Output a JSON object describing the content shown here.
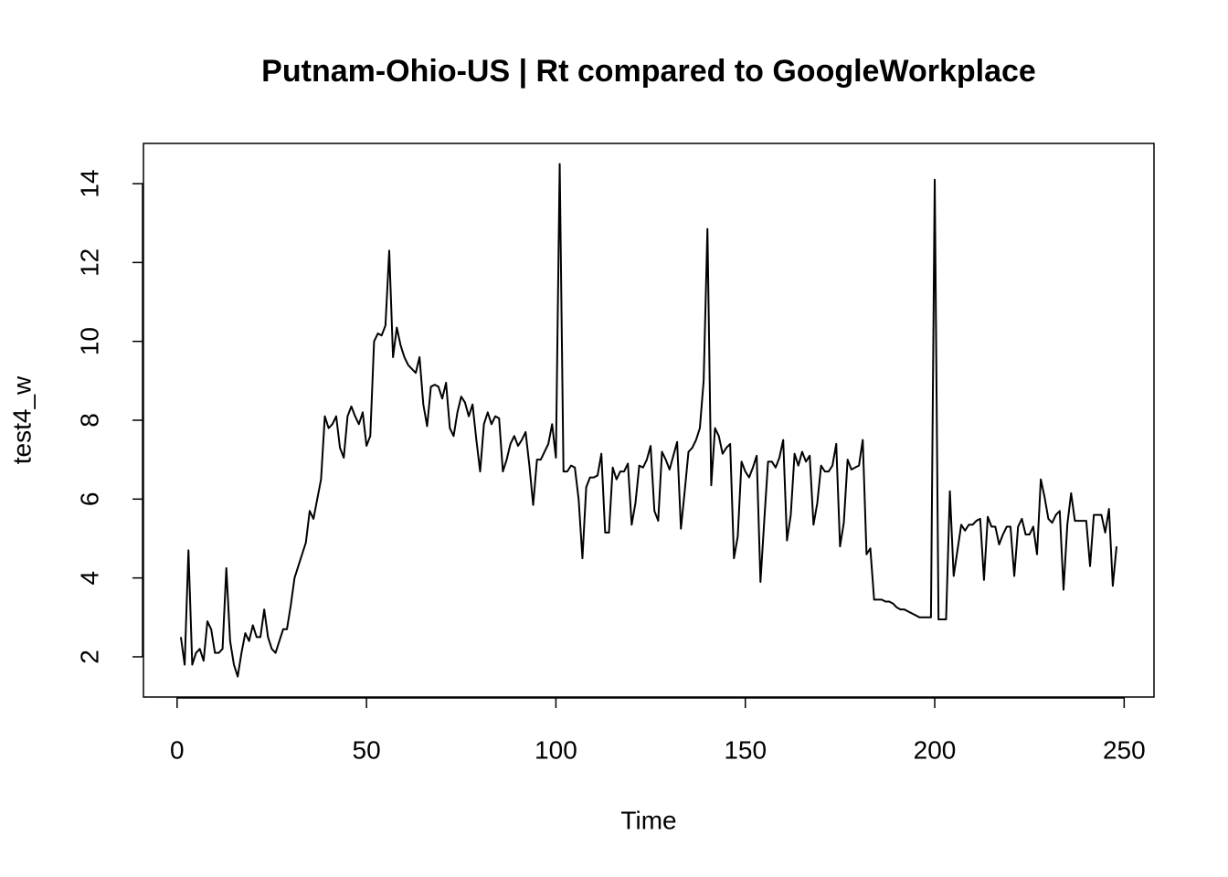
{
  "chart_data": {
    "type": "line",
    "title": "Putnam-Ohio-US | Rt compared to GoogleWorkplace",
    "x_label": "Time",
    "y_label": "test4_w",
    "x": [
      1,
      2,
      3,
      4,
      5,
      6,
      7,
      8,
      9,
      10,
      11,
      12,
      13,
      14,
      15,
      16,
      17,
      18,
      19,
      20,
      21,
      22,
      23,
      24,
      25,
      26,
      27,
      28,
      29,
      30,
      31,
      32,
      33,
      34,
      35,
      36,
      37,
      38,
      39,
      40,
      41,
      42,
      43,
      44,
      45,
      46,
      47,
      48,
      49,
      50,
      51,
      52,
      53,
      54,
      55,
      56,
      57,
      58,
      59,
      60,
      61,
      62,
      63,
      64,
      65,
      66,
      67,
      68,
      69,
      70,
      71,
      72,
      73,
      74,
      75,
      76,
      77,
      78,
      79,
      80,
      81,
      82,
      83,
      84,
      85,
      86,
      87,
      88,
      89,
      90,
      91,
      92,
      93,
      94,
      95,
      96,
      97,
      98,
      99,
      100,
      101,
      102,
      103,
      104,
      105,
      106,
      107,
      108,
      109,
      110,
      111,
      112,
      113,
      114,
      115,
      116,
      117,
      118,
      119,
      120,
      121,
      122,
      123,
      124,
      125,
      126,
      127,
      128,
      129,
      130,
      131,
      132,
      133,
      134,
      135,
      136,
      137,
      138,
      139,
      140,
      141,
      142,
      143,
      144,
      145,
      146,
      147,
      148,
      149,
      150,
      151,
      152,
      153,
      154,
      155,
      156,
      157,
      158,
      159,
      160,
      161,
      162,
      163,
      164,
      165,
      166,
      167,
      168,
      169,
      170,
      171,
      172,
      173,
      174,
      175,
      176,
      177,
      178,
      179,
      180,
      181,
      182,
      183,
      184,
      185,
      186,
      187,
      188,
      189,
      190,
      191,
      192,
      193,
      194,
      195,
      196,
      197,
      198,
      199,
      200,
      201,
      202,
      203,
      204,
      205,
      206,
      207,
      208,
      209,
      210,
      211,
      212,
      213,
      214,
      215,
      216,
      217,
      218,
      219,
      220,
      221,
      222,
      223,
      224,
      225,
      226,
      227,
      228,
      229,
      230,
      231,
      232,
      233,
      234,
      235,
      236,
      237,
      238,
      239,
      240,
      241,
      242,
      243,
      244,
      245,
      246,
      247,
      248
    ],
    "series": [
      {
        "color": "#000000",
        "values": [
          2.5,
          1.8,
          4.7,
          1.8,
          2.1,
          2.2,
          1.9,
          2.9,
          2.7,
          2.1,
          2.1,
          2.2,
          4.25,
          2.4,
          1.8,
          1.5,
          2.1,
          2.6,
          2.4,
          2.8,
          2.5,
          2.5,
          3.2,
          2.5,
          2.2,
          2.1,
          2.4,
          2.7,
          2.7,
          3.3,
          4.0,
          4.3,
          4.6,
          4.9,
          5.7,
          5.5,
          6.0,
          6.5,
          8.1,
          7.8,
          7.9,
          8.1,
          7.3,
          7.05,
          8.1,
          8.35,
          8.1,
          7.9,
          8.2,
          7.35,
          7.6,
          10.0,
          10.2,
          10.15,
          10.4,
          12.3,
          9.6,
          10.35,
          9.9,
          9.6,
          9.4,
          9.3,
          9.2,
          9.6,
          8.4,
          7.85,
          8.85,
          8.9,
          8.85,
          8.55,
          8.95,
          7.8,
          7.6,
          8.2,
          8.6,
          8.45,
          8.1,
          8.4,
          7.5,
          6.7,
          7.9,
          8.2,
          7.9,
          8.1,
          8.05,
          6.7,
          7.0,
          7.4,
          7.6,
          7.35,
          7.5,
          7.7,
          6.85,
          5.85,
          7.0,
          7.0,
          7.2,
          7.4,
          7.9,
          7.05,
          14.5,
          6.7,
          6.7,
          6.85,
          6.8,
          6.0,
          4.5,
          6.3,
          6.55,
          6.55,
          6.6,
          7.15,
          5.15,
          5.15,
          6.8,
          6.5,
          6.7,
          6.7,
          6.9,
          5.35,
          5.9,
          6.85,
          6.8,
          7.0,
          7.35,
          5.7,
          5.45,
          7.2,
          7.0,
          6.75,
          7.1,
          7.45,
          5.25,
          6.2,
          7.2,
          7.3,
          7.5,
          7.8,
          9.0,
          12.85,
          6.35,
          7.8,
          7.6,
          7.15,
          7.3,
          7.4,
          4.5,
          5.05,
          6.95,
          6.7,
          6.55,
          6.8,
          7.1,
          3.9,
          5.45,
          6.95,
          6.95,
          6.8,
          7.05,
          7.5,
          4.95,
          5.6,
          7.15,
          6.85,
          7.2,
          6.95,
          7.1,
          5.35,
          5.9,
          6.85,
          6.7,
          6.7,
          6.85,
          7.4,
          4.8,
          5.4,
          7.0,
          6.75,
          6.8,
          6.85,
          7.5,
          4.6,
          4.75,
          3.45,
          3.45,
          3.45,
          3.4,
          3.4,
          3.35,
          3.25,
          3.2,
          3.2,
          3.15,
          3.1,
          3.05,
          3.0,
          3.0,
          3.0,
          3.0,
          14.1,
          2.95,
          2.95,
          2.95,
          6.2,
          4.05,
          4.7,
          5.35,
          5.2,
          5.35,
          5.35,
          5.45,
          5.5,
          3.95,
          5.55,
          5.3,
          5.3,
          4.85,
          5.1,
          5.3,
          5.3,
          4.05,
          5.3,
          5.5,
          5.1,
          5.1,
          5.3,
          4.6,
          6.5,
          6.05,
          5.5,
          5.4,
          5.6,
          5.7,
          3.7,
          5.35,
          6.15,
          5.45,
          5.45,
          5.45,
          5.45,
          4.3,
          5.6,
          5.6,
          5.6,
          5.15,
          5.75,
          3.8,
          4.8
        ]
      }
    ],
    "xlim": [
      -8.88,
      257.88
    ],
    "xticks": [
      0,
      50,
      100,
      150,
      200,
      250
    ],
    "ylim": [
      0.98,
      15.02
    ],
    "yticks": [
      2,
      4,
      6,
      8,
      10,
      12,
      14
    ]
  }
}
